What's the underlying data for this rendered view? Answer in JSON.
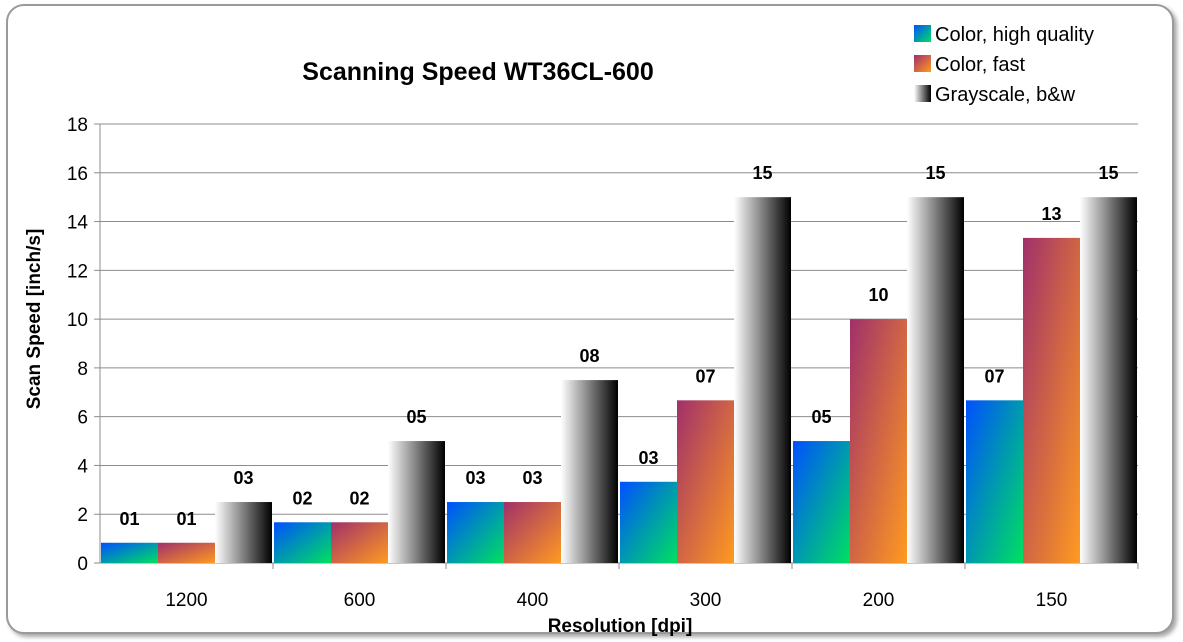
{
  "chart_data": {
    "type": "bar",
    "title": "Scanning Speed WT36CL-600",
    "xlabel": "Resolution [dpi]",
    "ylabel": "Scan Speed [inch/s]",
    "categories": [
      "1200",
      "600",
      "400",
      "300",
      "200",
      "150"
    ],
    "ylim": [
      0,
      18
    ],
    "yticks": [
      0,
      2,
      4,
      6,
      8,
      10,
      12,
      14,
      16,
      18
    ],
    "grid": true,
    "legend_position": "top-right",
    "series": [
      {
        "name": "Color, high quality",
        "values": [
          0.83,
          1.67,
          2.5,
          3.33,
          5.0,
          6.67
        ],
        "labels": [
          "01",
          "02",
          "03",
          "03",
          "05",
          "07"
        ],
        "gradient": [
          "#0050ff",
          "#00e060"
        ]
      },
      {
        "name": "Color, fast",
        "values": [
          0.83,
          1.67,
          2.5,
          6.67,
          10.0,
          13.33
        ],
        "labels": [
          "01",
          "02",
          "03",
          "07",
          "10",
          "13"
        ],
        "gradient": [
          "#a0306a",
          "#ff9a20"
        ]
      },
      {
        "name": "Grayscale, b&w",
        "values": [
          2.5,
          5.0,
          7.5,
          15.0,
          15.0,
          15.0
        ],
        "labels": [
          "03",
          "05",
          "08",
          "15",
          "15",
          "15"
        ],
        "gradient": [
          "#ffffff",
          "#000000"
        ]
      }
    ]
  }
}
